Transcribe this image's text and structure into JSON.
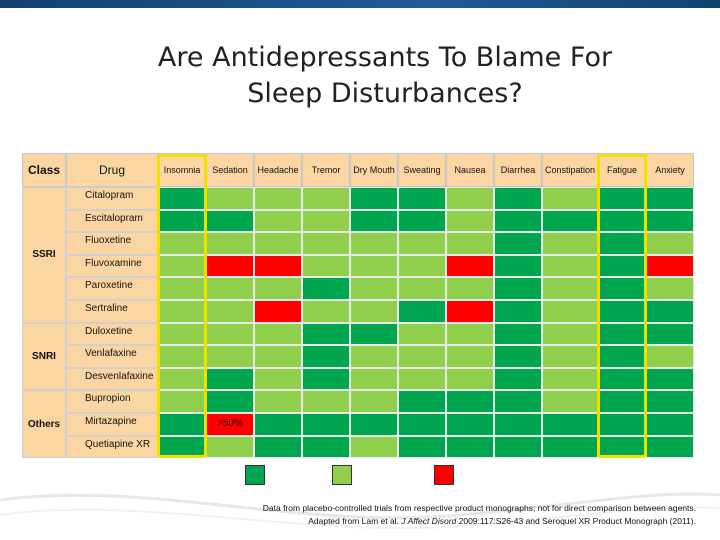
{
  "slide": {
    "title_line1": "Are Antidepressants To Blame For",
    "title_line2": "Sleep Disturbances?"
  },
  "colors": {
    "dark_green": "#00a550",
    "light_green": "#8fcf4b",
    "red": "#ff0000",
    "header_bg": "#fbd6a2",
    "highlight": "#f0e000"
  },
  "table": {
    "headers": {
      "class": "Class",
      "drug": "Drug"
    },
    "effects": [
      "Insomnia",
      "Sedation",
      "Headache",
      "Tremor",
      "Dry Mouth",
      "Sweating",
      "Nausea",
      "Diarrhea",
      "Constipation",
      "Fatigue",
      "Anxiety"
    ],
    "classes": [
      {
        "label": "SSRI",
        "first_row": 0,
        "span": 6
      },
      {
        "label": "SNRI",
        "first_row": 6,
        "span": 3
      },
      {
        "label": "Others",
        "first_row": 9,
        "span": 3
      }
    ],
    "rows": [
      {
        "drug": "Citalopram",
        "levels": [
          "D",
          "L",
          "L",
          "L",
          "D",
          "D",
          "L",
          "D",
          "L",
          "D",
          "D"
        ]
      },
      {
        "drug": "Escitalopram",
        "levels": [
          "D",
          "D",
          "L",
          "L",
          "D",
          "D",
          "L",
          "D",
          "D",
          "D",
          "D"
        ]
      },
      {
        "drug": "Fluoxetine",
        "levels": [
          "L",
          "L",
          "L",
          "L",
          "L",
          "L",
          "L",
          "D",
          "L",
          "D",
          "L"
        ]
      },
      {
        "drug": "Fluvoxamine",
        "levels": [
          "L",
          "R",
          "R",
          "L",
          "L",
          "L",
          "R",
          "D",
          "L",
          "D",
          "R"
        ]
      },
      {
        "drug": "Paroxetine",
        "levels": [
          "L",
          "L",
          "L",
          "D",
          "L",
          "L",
          "L",
          "D",
          "L",
          "D",
          "L"
        ]
      },
      {
        "drug": "Sertraline",
        "levels": [
          "L",
          "L",
          "R",
          "L",
          "L",
          "D",
          "R",
          "D",
          "L",
          "D",
          "D"
        ]
      },
      {
        "drug": "Duloxetine",
        "levels": [
          "L",
          "L",
          "L",
          "D",
          "D",
          "L",
          "L",
          "D",
          "L",
          "D",
          "D"
        ]
      },
      {
        "drug": "Venlafaxine",
        "levels": [
          "L",
          "L",
          "L",
          "D",
          "L",
          "L",
          "L",
          "D",
          "L",
          "D",
          "L"
        ]
      },
      {
        "drug": "Desvenlafaxine",
        "levels": [
          "L",
          "D",
          "L",
          "D",
          "L",
          "L",
          "L",
          "D",
          "L",
          "D",
          "D"
        ]
      },
      {
        "drug": "Bupropion",
        "levels": [
          "L",
          "D",
          "L",
          "L",
          "L",
          "D",
          "D",
          "D",
          "L",
          "D",
          "D"
        ]
      },
      {
        "drug": "Mirtazapine",
        "levels": [
          "D",
          "R",
          "D",
          "D",
          "D",
          "D",
          "D",
          "D",
          "D",
          "D",
          "D"
        ]
      },
      {
        "drug": "Quetiapine XR",
        "levels": [
          "D",
          "L",
          "D",
          "D",
          "L",
          "D",
          "D",
          "D",
          "D",
          "D",
          "D"
        ]
      }
    ],
    "highlighted_columns": [
      0,
      9
    ],
    "overlay_text": ">50%",
    "overlay_row": 10,
    "overlay_col": 1
  },
  "legend": [
    "dark_green",
    "light_green",
    "red"
  ],
  "footnote": {
    "line1": "Data from placebo-controlled trials from respective product monographs; not for direct comparison between agents.",
    "line2_prefix": "Adapted from Lam et al. ",
    "line2_journal": "J Affect Disord",
    "line2_suffix": " 2009:117:S26-43 and Seroquel XR Product Monograph (2011)."
  }
}
